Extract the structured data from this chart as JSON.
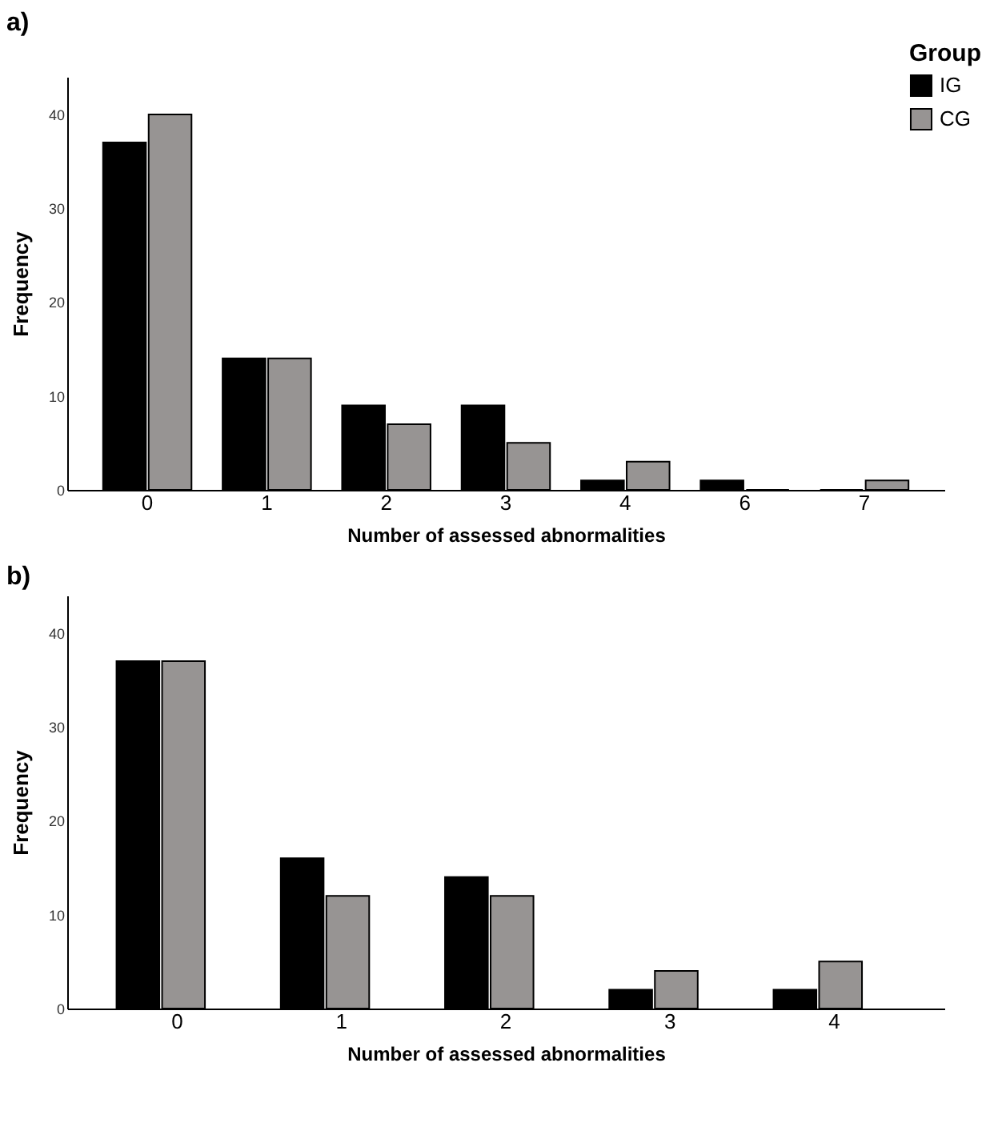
{
  "chart_data": [
    {
      "type": "bar",
      "title": "a)",
      "xlabel": "Number of assessed abnormalities",
      "ylabel": "Frequency",
      "legend_title": "Group",
      "legend": "top right",
      "categories": [
        "0",
        "1",
        "2",
        "3",
        "4",
        "6",
        "7"
      ],
      "series": [
        {
          "name": "IG",
          "color": "#000000",
          "values": [
            37,
            14,
            9,
            9,
            1,
            1,
            0
          ]
        },
        {
          "name": "CG",
          "color": "#979493",
          "values": [
            40,
            14,
            7,
            5,
            3,
            0,
            1
          ]
        }
      ],
      "ylim": [
        0,
        44
      ],
      "yticks": [
        0,
        10,
        20,
        30,
        40
      ],
      "grid": false
    },
    {
      "type": "bar",
      "title": "b)",
      "xlabel": "Number of assessed abnormalities",
      "ylabel": "Frequency",
      "categories": [
        "0",
        "1",
        "2",
        "3",
        "4"
      ],
      "series": [
        {
          "color": "#000000",
          "values": [
            37,
            16,
            14,
            2,
            2
          ]
        },
        {
          "color": "#979493",
          "values": [
            37,
            12,
            12,
            4,
            5
          ]
        }
      ],
      "ylim": [
        0,
        44
      ],
      "yticks": [
        0,
        10,
        20,
        30,
        40
      ],
      "grid": false
    }
  ]
}
